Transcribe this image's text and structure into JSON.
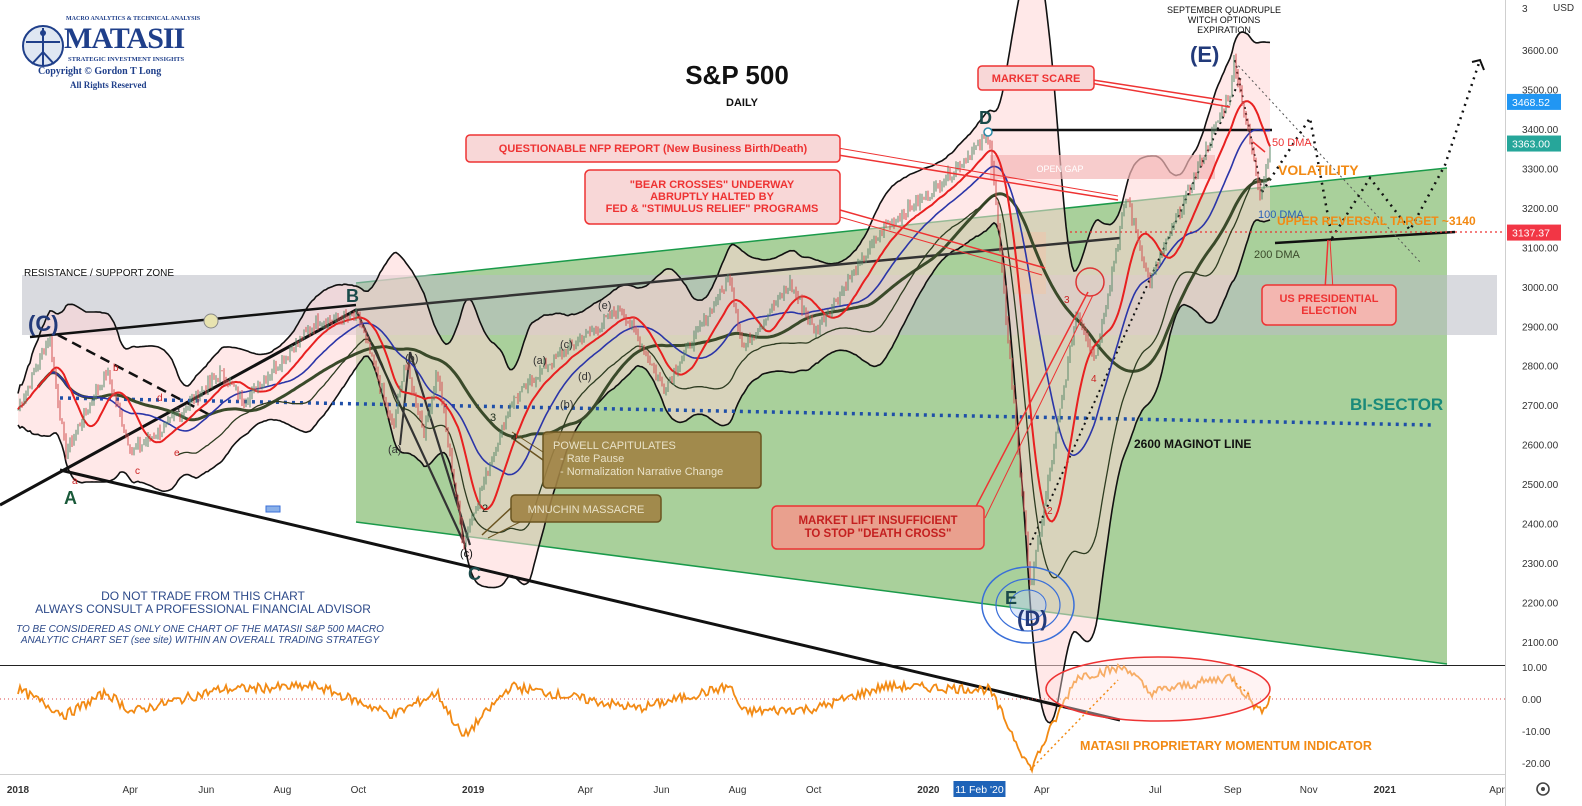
{
  "logo": {
    "tagline": "MACRO ANALYTICS & TECHNICAL ANALYSIS",
    "name": "MATASII",
    "subtitle": "STRATEGIC INVESTMENT INSIGHTS",
    "copyright": "Copyright © Gordon T Long",
    "rights": "All Rights Reserved"
  },
  "currency": "USD",
  "chart_data": {
    "type": "line",
    "title": "S&P 500",
    "subtitle": "DAILY",
    "x_ticks": [
      "2018",
      "Apr",
      "Jun",
      "Aug",
      "Oct",
      "2019",
      "Apr",
      "Jun",
      "Aug",
      "Oct",
      "2020",
      "Apr",
      "Jul",
      "Sep",
      "Nov",
      "2021",
      "Apr"
    ],
    "x_highlight": "11 Feb '20",
    "ylim": [
      2050,
      3700
    ],
    "y_ticks": [
      2100,
      2200,
      2300,
      2400,
      2500,
      2600,
      2700,
      2800,
      2900,
      3000,
      3100,
      3200,
      3300,
      3400,
      3500,
      3600
    ],
    "price_badges": [
      {
        "value": "3468.52",
        "color": "#2196f3"
      },
      {
        "value": "3363.00",
        "color": "#26a69a"
      },
      {
        "value": "3137.37",
        "color": "#f23645"
      }
    ],
    "series": [
      {
        "name": "50 DMA",
        "color": "#e82020"
      },
      {
        "name": "100 DMA",
        "color": "#2b35a8"
      },
      {
        "name": "200 DMA",
        "color": "#3a4a2a"
      }
    ],
    "price_path": [
      [
        "2018-01-01",
        2690
      ],
      [
        "2018-01-26",
        2872
      ],
      [
        "2018-02-08",
        2581
      ],
      [
        "2018-03-13",
        2786
      ],
      [
        "2018-04-02",
        2581
      ],
      [
        "2018-05-01",
        2650
      ],
      [
        "2018-06-12",
        2780
      ],
      [
        "2018-07-02",
        2713
      ],
      [
        "2018-08-29",
        2914
      ],
      [
        "2018-10-01",
        2924
      ],
      [
        "2018-10-29",
        2640
      ],
      [
        "2018-11-07",
        2813
      ],
      [
        "2018-11-23",
        2632
      ],
      [
        "2018-12-03",
        2790
      ],
      [
        "2018-12-24",
        2351
      ],
      [
        "2019-01-31",
        2704
      ],
      [
        "2019-03-01",
        2803
      ],
      [
        "2019-04-30",
        2946
      ],
      [
        "2019-06-03",
        2744
      ],
      [
        "2019-07-26",
        3025
      ],
      [
        "2019-08-05",
        2845
      ],
      [
        "2019-09-12",
        3009
      ],
      [
        "2019-10-02",
        2888
      ],
      [
        "2019-11-27",
        3153
      ],
      [
        "2019-12-31",
        3230
      ],
      [
        "2020-02-19",
        3386
      ],
      [
        "2020-03-23",
        2237
      ],
      [
        "2020-04-29",
        2939
      ],
      [
        "2020-05-14",
        2820
      ],
      [
        "2020-06-08",
        3232
      ],
      [
        "2020-06-26",
        3009
      ],
      [
        "2020-08-31",
        3500
      ],
      [
        "2020-09-02",
        3580
      ],
      [
        "2020-09-23",
        3237
      ],
      [
        "2020-10-02",
        3363
      ]
    ],
    "momentum": {
      "name": "MATASII PROPRIETARY MOMENTUM INDICATOR",
      "ylim": [
        -23,
        12
      ],
      "y_ticks": [
        "10.00",
        "0.00",
        "-10.00",
        "-20.00"
      ],
      "points": [
        [
          "2018-01-01",
          3
        ],
        [
          "2018-02-08",
          -5
        ],
        [
          "2018-03-13",
          2
        ],
        [
          "2018-04-02",
          -4
        ],
        [
          "2018-06-12",
          3
        ],
        [
          "2018-08-29",
          4
        ],
        [
          "2018-10-29",
          -5
        ],
        [
          "2018-12-03",
          2
        ],
        [
          "2018-12-24",
          -12
        ],
        [
          "2019-01-31",
          4
        ],
        [
          "2019-05-13",
          -3
        ],
        [
          "2019-07-26",
          4
        ],
        [
          "2019-08-05",
          -4
        ],
        [
          "2019-10-02",
          -3
        ],
        [
          "2019-11-27",
          4
        ],
        [
          "2020-02-19",
          3
        ],
        [
          "2020-03-23",
          -22
        ],
        [
          "2020-04-29",
          7
        ],
        [
          "2020-06-08",
          10
        ],
        [
          "2020-06-26",
          2
        ],
        [
          "2020-08-31",
          7
        ],
        [
          "2020-09-23",
          -4
        ],
        [
          "2020-10-02",
          1
        ]
      ]
    }
  },
  "annotations": {
    "resistance_zone": "RESISTANCE / SUPPORT ZONE",
    "warning_line1": "DO NOT TRADE FROM THIS CHART",
    "warning_line2": "ALWAYS CONSULT A PROFESSIONAL FINANCIAL ADVISOR",
    "disclaimer_line1": "TO BE CONSIDERED AS ONLY ONE CHART OF THE MATASII S&P 500 MACRO",
    "disclaimer_line2": "ANALYTIC CHART SET (see site) WITHIN AN OVERALL TRADING STRATEGY",
    "sept_line1": "SEPTEMBER QUADRUPLE",
    "sept_line2": "WITCH OPTIONS",
    "sept_line3": "EXPIRATION",
    "market_scare": "MARKET SCARE",
    "nfp": "QUESTIONABLE NFP REPORT (New Business Birth/Death)",
    "bear1": "\"BEAR CROSSES\" UNDERWAY",
    "bear2": "ABRUPTLY HALTED BY",
    "bear3": "FED & \"STIMULUS RELIEF\" PROGRAMS",
    "open_gap": "OPEN GAP",
    "volatility": "VOLATILITY",
    "upper_target": "UPPER REVERSAL TARGET ~3140",
    "us_election1": "US PRESIDENTIAL",
    "us_election2": "ELECTION",
    "bisector": "BI-SECTOR",
    "maginot": "2600 MAGINOT LINE",
    "powell1": "POWELL CAPITULATES",
    "powell2": "- Rate Pause",
    "powell3": "- Normalization Narrative Change",
    "mnuchin": "MNUCHIN MASSACRE",
    "lift1": "MARKET LIFT INSUFFICIENT",
    "lift2": "TO STOP \"DEATH CROSS\"",
    "wave_A": "A",
    "wave_B": "B",
    "wave_C": "C",
    "wave_D": "D",
    "wave_E": "E",
    "wave_pC": "(C)",
    "wave_pD": "(D)",
    "wave_pE": "(E)",
    "sub_a": "(a)",
    "sub_b": "(b)",
    "sub_c": "(c)",
    "sub_d": "(d)",
    "sub_e": "(e)",
    "sub_a2": "(a)",
    "sub_b2": "(b)",
    "sub_c2": "(c)",
    "red_a": "a",
    "red_b": "b",
    "red_c": "c",
    "red_d": "d",
    "red_e": "e",
    "red_a2": "a",
    "n2": "2",
    "n3": "3",
    "n4": "4",
    "n2r": "2",
    "n3r": "3",
    "n4r": "4"
  }
}
